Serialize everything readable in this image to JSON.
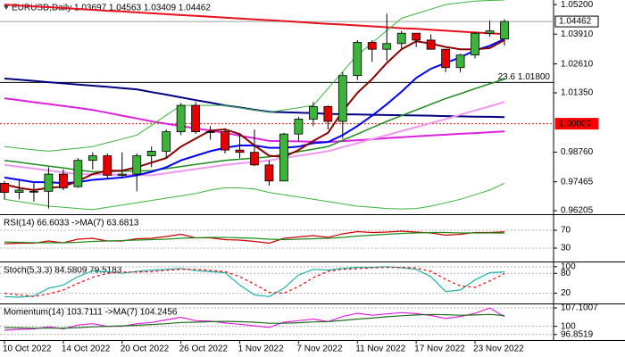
{
  "chart_data": [
    {
      "type": "candlestick",
      "title": "EURUSD,Daily  1.03697 1.04563 1.03409 1.04462",
      "categories": [
        "10 Oct 2022",
        null,
        null,
        null,
        "14 Oct 2022",
        null,
        null,
        null,
        "20 Oct 2022",
        null,
        null,
        null,
        "26 Oct 2022",
        null,
        null,
        null,
        "1 Nov 2022",
        null,
        null,
        null,
        "7 Nov 2022",
        null,
        null,
        null,
        "11 Nov 2022",
        null,
        null,
        null,
        "17 Nov 2022",
        null,
        null,
        null,
        "23 Nov 2022",
        null,
        null
      ],
      "open": [
        0.974,
        0.97,
        0.9705,
        0.9705,
        0.978,
        0.9725,
        0.984,
        0.986,
        0.9775,
        0.978,
        0.986,
        0.988,
        0.9965,
        1.008,
        0.9965,
        0.9965,
        0.9885,
        0.9875,
        0.982,
        0.975,
        0.9955,
        1.002,
        1.0075,
        1.001,
        1.021,
        1.0355,
        1.0325,
        1.035,
        1.0395,
        1.0365,
        1.0325,
        1.0245,
        1.03,
        1.0395,
        1.03697
      ],
      "high": [
        0.975,
        0.976,
        0.974,
        0.981,
        0.98,
        0.985,
        0.9875,
        0.987,
        0.9875,
        0.987,
        0.99,
        0.9975,
        1.009,
        1.0095,
        0.999,
        0.998,
        0.9955,
        0.9975,
        0.984,
        0.996,
        1.003,
        1.0095,
        1.008,
        1.0225,
        1.0365,
        1.0365,
        1.048,
        1.0405,
        1.0395,
        1.039,
        1.0325,
        1.0305,
        1.04,
        1.045,
        1.04563
      ],
      "low": [
        0.967,
        0.967,
        0.966,
        0.963,
        0.971,
        0.972,
        0.98,
        0.976,
        0.9765,
        0.9705,
        0.981,
        0.985,
        0.995,
        0.9955,
        0.993,
        0.987,
        0.985,
        0.9815,
        0.973,
        0.975,
        0.9925,
        0.999,
        0.9975,
        0.9935,
        1.019,
        1.027,
        1.0275,
        1.033,
        1.0335,
        1.0325,
        1.0225,
        1.0225,
        1.0285,
        1.038,
        1.03409
      ],
      "close": [
        0.97,
        0.971,
        0.9705,
        0.978,
        0.972,
        0.984,
        0.986,
        0.9775,
        0.978,
        0.986,
        0.988,
        0.9965,
        1.008,
        0.9965,
        0.9965,
        0.9885,
        0.9875,
        0.982,
        0.975,
        0.9955,
        1.002,
        1.0075,
        1.001,
        1.021,
        1.0355,
        1.0325,
        1.035,
        1.0395,
        1.0365,
        1.0325,
        1.0245,
        1.03,
        1.0395,
        1.0405,
        1.04462
      ],
      "up_color": "#3cb43c",
      "down_color": "#e60000",
      "series": [
        {
          "color": "#e8101c",
          "values": [
            1.052,
            1.0516,
            1.0512,
            1.0509,
            1.0505,
            1.0501,
            1.0497,
            1.0493,
            1.049,
            1.0486,
            1.0482,
            1.0478,
            1.0474,
            1.0471,
            1.0467,
            1.0463,
            1.0459,
            1.0455,
            1.0452,
            1.0448,
            1.0444,
            1.044,
            1.0436,
            1.0433,
            1.0429,
            1.0425,
            1.0421,
            1.0417,
            1.0414,
            1.041,
            1.0406,
            1.0402,
            1.0398,
            1.0395,
            1.0391
          ]
        },
        {
          "color": "#000080",
          "values": [
            1.0197,
            1.0192,
            1.0187,
            1.0181,
            1.0176,
            1.0171,
            1.0166,
            1.0161,
            1.0155,
            1.015,
            1.0138,
            1.0127,
            1.0115,
            1.0103,
            1.0092,
            1.008,
            1.0071,
            1.0061,
            1.0052,
            1.005,
            1.0048,
            1.0046,
            1.0043,
            1.0041,
            1.004,
            1.0039,
            1.0038,
            1.0037,
            1.0036,
            1.0035,
            1.0033,
            1.0032,
            1.0031,
            1.003,
            1.0029
          ]
        },
        {
          "color": "#dd22dd",
          "values": [
            1.0111,
            1.0103,
            1.0094,
            1.0086,
            1.0077,
            1.0069,
            1.006,
            1.0048,
            1.0035,
            1.0023,
            1.001,
            1.0,
            0.999,
            0.998,
            0.997,
            0.996,
            0.9948,
            0.9937,
            0.9925,
            0.9924,
            0.9923,
            0.9921,
            0.992,
            0.9924,
            0.9928,
            0.9932,
            0.9937,
            0.9941,
            0.9945,
            0.9949,
            0.9952,
            0.9956,
            0.9959,
            0.9963,
            0.9966
          ]
        },
        {
          "color": "#ee99ee",
          "values": [
            0.982,
            0.9812,
            0.9804,
            0.9796,
            0.9788,
            0.978,
            0.9779,
            0.9778,
            0.9777,
            0.9776,
            0.9775,
            0.9784,
            0.9793,
            0.9802,
            0.9811,
            0.982,
            0.9827,
            0.9833,
            0.984,
            0.985,
            0.986,
            0.987,
            0.988,
            0.9898,
            0.9915,
            0.9933,
            0.995,
            0.9968,
            0.9985,
            1.0003,
            1.002,
            1.0039,
            1.0058,
            1.0076,
            1.0095
          ]
        },
        {
          "color": "#1e8c1e",
          "values": [
            0.984,
            0.9832,
            0.9823,
            0.9815,
            0.9807,
            0.9798,
            0.979,
            0.9791,
            0.9793,
            0.9794,
            0.9795,
            0.9804,
            0.9813,
            0.9822,
            0.9831,
            0.984,
            0.9845,
            0.985,
            0.9855,
            0.9866,
            0.9878,
            0.9889,
            0.99,
            0.9928,
            0.9955,
            0.9983,
            1.001,
            1.0035,
            1.006,
            1.0085,
            1.011,
            1.0131,
            1.0153,
            1.0174,
            1.0195
          ]
        },
        {
          "color": "#3cb43c",
          "values": [
            0.99,
            0.9893,
            0.9886,
            0.988,
            0.9887,
            0.9893,
            0.99,
            0.9917,
            0.9933,
            0.995,
            0.9993,
            1.0037,
            1.008,
            1.008,
            1.008,
            1.008,
            1.007,
            1.006,
            1.005,
            1.006,
            1.007,
            1.008,
            1.0153,
            1.0227,
            1.03,
            1.0353,
            1.0407,
            1.046,
            1.048,
            1.05,
            1.052,
            1.0528,
            1.0535,
            1.0538,
            1.054
          ]
        },
        {
          "color": "#3cb43c",
          "values": [
            0.967,
            0.966,
            0.965,
            0.964,
            0.9635,
            0.963,
            0.9625,
            0.9635,
            0.9645,
            0.9655,
            0.9665,
            0.9675,
            0.9685,
            0.9695,
            0.971,
            0.972,
            0.972,
            0.9715,
            0.97,
            0.969,
            0.968,
            0.967,
            0.966,
            0.965,
            0.964,
            0.9635,
            0.963,
            0.9628,
            0.963,
            0.964,
            0.9655,
            0.967,
            0.969,
            0.971,
            0.974
          ]
        },
        {
          "color": "#0000ff",
          "values": [
            0.9765,
            0.9755,
            0.9745,
            0.9745,
            0.974,
            0.9745,
            0.9755,
            0.976,
            0.9765,
            0.9775,
            0.979,
            0.981,
            0.984,
            0.986,
            0.988,
            0.9895,
            0.9905,
            0.9905,
            0.9895,
            0.9895,
            0.99,
            0.9915,
            0.992,
            0.995,
            0.999,
            1.0035,
            1.0085,
            1.014,
            1.02,
            1.024,
            1.0265,
            1.029,
            1.032,
            1.034,
            1.037
          ]
        },
        {
          "color": "#8b0000",
          "values": [
            0.9735,
            0.972,
            0.971,
            0.972,
            0.9725,
            0.975,
            0.978,
            0.9795,
            0.9795,
            0.981,
            0.983,
            0.985,
            0.99,
            0.9935,
            0.997,
            0.9975,
            0.9955,
            0.9905,
            0.986,
            0.9855,
            0.9885,
            0.9925,
            0.996,
            1.0055,
            1.0135,
            1.0195,
            1.0265,
            1.0325,
            1.036,
            1.035,
            1.0335,
            1.0325,
            1.0325,
            1.033,
            1.0365
          ]
        }
      ],
      "hlines": [
        {
          "value": 1.018,
          "label": "23.6 1.01800",
          "color": "#000000",
          "style": "solid",
          "tag": "text"
        },
        {
          "value": 1.0,
          "label": "1.00000",
          "color": "#ff0000",
          "style": "dotted",
          "tag": "box"
        },
        {
          "value": 1.04462,
          "label": "1.04462",
          "color": "#a0a0a0",
          "style": "solid",
          "tag": "box"
        }
      ],
      "ylim": [
        0.9605,
        1.054
      ],
      "yticks": [
        {
          "value": 1.052,
          "label": "1.05200"
        },
        {
          "value": 1.0391,
          "label": "1.03910"
        },
        {
          "value": 1.0261,
          "label": "1.02610"
        },
        {
          "value": 1.0135,
          "label": "1.01350"
        },
        {
          "value": 0.9876,
          "label": "0.98760"
        },
        {
          "value": 0.97465,
          "label": "0.97465"
        },
        {
          "value": 0.96205,
          "label": "0.96205"
        }
      ],
      "grid": false
    },
    {
      "type": "line",
      "title": "RSI(14) 66.6033  ->MA(7) 63.6813",
      "series": [
        {
          "color": "#cc0000",
          "values": [
            40,
            41,
            41,
            46,
            42,
            50,
            52,
            46,
            46,
            51,
            52,
            56,
            61,
            53,
            53,
            49,
            48,
            45,
            41,
            52,
            55,
            58,
            54,
            62,
            67,
            65,
            66,
            68,
            66,
            64,
            59,
            61,
            65,
            65,
            66.6
          ]
        },
        {
          "color": "#1e8c1e",
          "values": [
            44,
            43,
            42,
            42,
            42,
            43,
            45,
            46,
            47,
            48,
            49,
            50,
            52,
            53,
            54,
            54,
            53,
            52,
            50,
            49,
            50,
            51,
            52,
            54,
            57,
            59,
            61,
            63,
            64,
            65,
            65,
            64,
            64,
            64,
            63.7
          ]
        }
      ],
      "ylim": [
        0,
        104
      ],
      "yticks": [
        70,
        30
      ],
      "grid": true
    },
    {
      "type": "line",
      "title": "Stoch(5,3,3) 84.5809 79.5183",
      "series": [
        {
          "color": "#20b2aa",
          "values": [
            10,
            8,
            12,
            35,
            45,
            70,
            88,
            85,
            80,
            86,
            90,
            92,
            95,
            88,
            85,
            82,
            45,
            15,
            10,
            35,
            75,
            92,
            90,
            95,
            98,
            98,
            100,
            97,
            92,
            70,
            25,
            30,
            60,
            82,
            84.6
          ]
        },
        {
          "color": "#ff0000",
          "dash": true,
          "values": [
            20,
            15,
            10,
            18,
            30,
            50,
            68,
            80,
            84,
            84,
            85,
            89,
            92,
            92,
            89,
            85,
            70,
            47,
            23,
            20,
            40,
            67,
            86,
            92,
            94,
            97,
            98,
            98,
            96,
            86,
            62,
            42,
            38,
            57,
            79.5
          ]
        }
      ],
      "ylim": [
        -8,
        113
      ],
      "yticks": [
        100,
        80,
        20
      ],
      "grid": true
    },
    {
      "type": "line",
      "title": "Momentum(14) 103.7111  ->MA(7) 104.2456",
      "series": [
        {
          "color": "#dd22dd",
          "values": [
            98.5,
            98.8,
            99,
            99.8,
            99,
            100.5,
            101,
            100,
            100,
            101,
            101.5,
            102.5,
            103.5,
            102.2,
            102,
            101.3,
            100.8,
            100.2,
            99.6,
            101.6,
            102.2,
            102.8,
            101.8,
            103.8,
            105,
            104.3,
            104.8,
            105.3,
            104.9,
            104.2,
            103,
            103.8,
            105,
            107.1,
            103.7
          ]
        },
        {
          "color": "#1e6e1e",
          "values": [
            99.5,
            99.4,
            99.3,
            99.3,
            99.3,
            99.5,
            99.8,
            100,
            100.2,
            100.4,
            100.7,
            101,
            101.5,
            101.6,
            101.8,
            101.9,
            101.8,
            101.6,
            101.2,
            101.2,
            101.4,
            101.7,
            101.8,
            102.3,
            102.8,
            103.2,
            103.7,
            104.1,
            104.4,
            104.6,
            104.5,
            104.3,
            104.4,
            104.6,
            104.2
          ]
        }
      ],
      "ylim": [
        94.7,
        108.5
      ],
      "yticks": [
        107.1007,
        100,
        96.8519
      ],
      "grid": true
    }
  ]
}
